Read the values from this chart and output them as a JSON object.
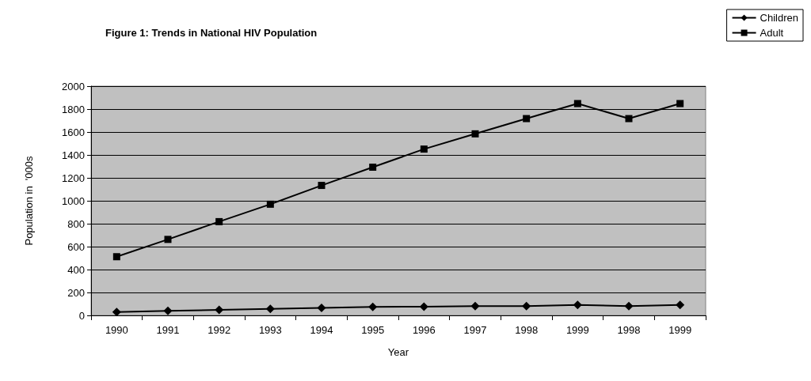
{
  "chart_data": {
    "type": "line",
    "title": "Figure 1: Trends in National HIV Population",
    "xlabel": "Year",
    "ylabel": "Population in  '000s",
    "categories": [
      "1990",
      "1991",
      "1992",
      "1993",
      "1994",
      "1995",
      "1996",
      "1997",
      "1998",
      "1999",
      "1998",
      "1999"
    ],
    "series": [
      {
        "name": "Children",
        "color": "#000000",
        "marker": "diamond",
        "values": [
          30,
          39,
          48,
          57,
          65,
          74,
          76,
          81,
          81,
          92,
          81,
          92
        ]
      },
      {
        "name": "Adult",
        "color": "#000000",
        "marker": "square",
        "values": [
          512,
          663,
          818,
          970,
          1134,
          1293,
          1451,
          1584,
          1717,
          1848,
          1717,
          1848
        ]
      }
    ],
    "ylim": [
      0,
      2000
    ],
    "yticks": [
      0,
      200,
      400,
      600,
      800,
      1000,
      1200,
      1400,
      1600,
      1800,
      2000
    ],
    "grid": "y",
    "legend": "top right",
    "line_style": "solid"
  }
}
